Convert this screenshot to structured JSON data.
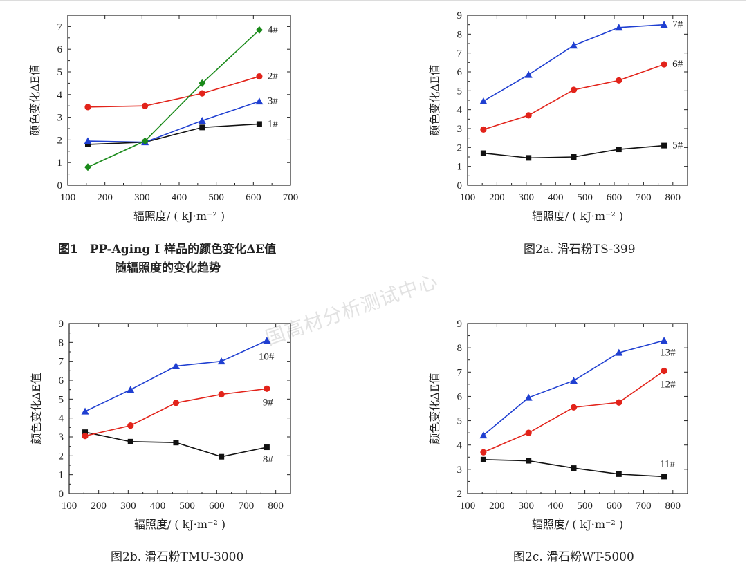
{
  "watermark": "国高材分析测试中心",
  "colors": {
    "s_black": "#111111",
    "s_red": "#e2231a",
    "s_blue": "#1f3fd1",
    "s_green": "#1a8a1a"
  },
  "captions": {
    "fig1_line1": "图1　PP-Aging Ⅰ 样品的颜色变化ΔE值",
    "fig1_line2": "随辐照度的变化趋势",
    "fig2a": "图2a. 滑石粉TS-399",
    "fig2b": "图2b. 滑石粉TMU-3000",
    "fig2c": "图2c. 滑石粉WT-5000"
  },
  "chart_data": [
    {
      "id": "fig1",
      "type": "line",
      "xlabel": "辐照度/ ( kJ·m⁻² )",
      "ylabel": "颜色变化ΔE值",
      "xlim": [
        100,
        700
      ],
      "ylim": [
        0,
        7.5
      ],
      "xticks": [
        100,
        200,
        300,
        400,
        500,
        600,
        700
      ],
      "yticks": [
        0,
        1,
        2,
        3,
        4,
        5,
        6,
        7
      ],
      "grid": false,
      "series": [
        {
          "name": "1#",
          "color": "#111111",
          "marker": "square",
          "x": [
            154,
            308,
            462,
            616
          ],
          "y": [
            1.8,
            1.9,
            2.55,
            2.7
          ]
        },
        {
          "name": "2#",
          "color": "#e2231a",
          "marker": "circle",
          "x": [
            154,
            308,
            462,
            616
          ],
          "y": [
            3.45,
            3.5,
            4.05,
            4.8
          ]
        },
        {
          "name": "3#",
          "color": "#1f3fd1",
          "marker": "triangle",
          "x": [
            154,
            308,
            462,
            616
          ],
          "y": [
            1.95,
            1.9,
            2.85,
            3.7
          ]
        },
        {
          "name": "4#",
          "color": "#1a8a1a",
          "marker": "diamond",
          "x": [
            154,
            308,
            462,
            616
          ],
          "y": [
            0.8,
            1.95,
            4.5,
            6.85
          ]
        }
      ]
    },
    {
      "id": "fig2a",
      "type": "line",
      "xlabel": "辐照度/ ( kJ·m⁻² )",
      "ylabel": "颜色变化ΔE值",
      "xlim": [
        100,
        850
      ],
      "ylim": [
        0,
        9
      ],
      "xticks": [
        100,
        200,
        300,
        400,
        500,
        600,
        700,
        800
      ],
      "yticks": [
        0,
        1,
        2,
        3,
        4,
        5,
        6,
        7,
        8,
        9
      ],
      "grid": false,
      "series": [
        {
          "name": "5#",
          "color": "#111111",
          "marker": "square",
          "x": [
            154,
            308,
            462,
            616,
            770
          ],
          "y": [
            1.7,
            1.45,
            1.5,
            1.9,
            2.1
          ]
        },
        {
          "name": "6#",
          "color": "#e2231a",
          "marker": "circle",
          "x": [
            154,
            308,
            462,
            616,
            770
          ],
          "y": [
            2.95,
            3.7,
            5.05,
            5.55,
            6.4
          ]
        },
        {
          "name": "7#",
          "color": "#1f3fd1",
          "marker": "triangle",
          "x": [
            154,
            308,
            462,
            616,
            770
          ],
          "y": [
            4.45,
            5.85,
            7.4,
            8.35,
            8.5
          ]
        }
      ]
    },
    {
      "id": "fig2b",
      "type": "line",
      "xlabel": "辐照度/ ( kJ·m⁻² )",
      "ylabel": "颜色变化ΔE值",
      "xlim": [
        100,
        850
      ],
      "ylim": [
        0,
        9
      ],
      "xticks": [
        100,
        200,
        300,
        400,
        500,
        600,
        700,
        800
      ],
      "yticks": [
        0,
        1,
        2,
        3,
        4,
        5,
        6,
        7,
        8,
        9
      ],
      "grid": false,
      "series": [
        {
          "name": "8#",
          "color": "#111111",
          "marker": "square",
          "x": [
            154,
            308,
            462,
            616,
            770
          ],
          "y": [
            3.25,
            2.75,
            2.7,
            1.95,
            2.45
          ]
        },
        {
          "name": "9#",
          "color": "#e2231a",
          "marker": "circle",
          "x": [
            154,
            308,
            462,
            616,
            770
          ],
          "y": [
            3.05,
            3.6,
            4.8,
            5.25,
            5.55
          ]
        },
        {
          "name": "10#",
          "color": "#1f3fd1",
          "marker": "triangle",
          "x": [
            154,
            308,
            462,
            616,
            770
          ],
          "y": [
            4.35,
            5.5,
            6.75,
            7.0,
            8.1
          ]
        }
      ]
    },
    {
      "id": "fig2c",
      "type": "line",
      "xlabel": "辐照度/ ( kJ·m⁻² )",
      "ylabel": "颜色变化ΔE值",
      "xlim": [
        100,
        850
      ],
      "ylim": [
        2,
        9
      ],
      "xticks": [
        100,
        200,
        300,
        400,
        500,
        600,
        700,
        800
      ],
      "yticks": [
        2,
        3,
        4,
        5,
        6,
        7,
        8,
        9
      ],
      "grid": false,
      "series": [
        {
          "name": "11#",
          "color": "#111111",
          "marker": "square",
          "x": [
            154,
            308,
            462,
            616,
            770
          ],
          "y": [
            3.4,
            3.35,
            3.05,
            2.8,
            2.7
          ]
        },
        {
          "name": "12#",
          "color": "#e2231a",
          "marker": "circle",
          "x": [
            154,
            308,
            462,
            616,
            770
          ],
          "y": [
            3.7,
            4.5,
            5.55,
            5.75,
            7.05
          ]
        },
        {
          "name": "13#",
          "color": "#1f3fd1",
          "marker": "triangle",
          "x": [
            154,
            308,
            462,
            616,
            770
          ],
          "y": [
            4.4,
            5.95,
            6.65,
            7.8,
            8.3
          ]
        }
      ]
    }
  ]
}
